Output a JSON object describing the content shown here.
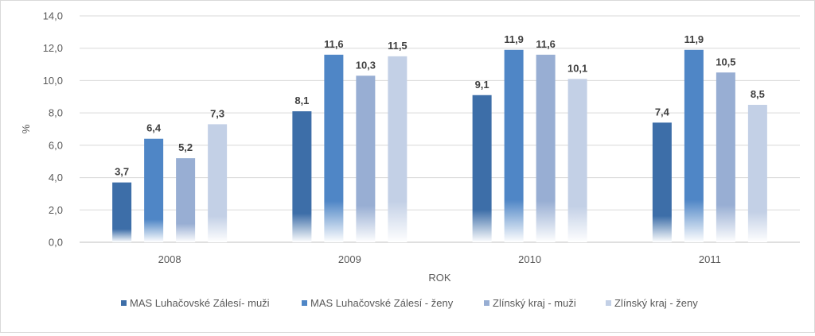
{
  "chart_data": {
    "type": "bar",
    "title": "",
    "xlabel": "ROK",
    "ylabel": "%",
    "ylim": [
      0,
      14
    ],
    "yticks": [
      "0,0",
      "2,0",
      "4,0",
      "6,0",
      "8,0",
      "10,0",
      "12,0",
      "14,0"
    ],
    "ytick_values": [
      0,
      2,
      4,
      6,
      8,
      10,
      12,
      14
    ],
    "grid": true,
    "legend": "bottom",
    "categories": [
      "2008",
      "2009",
      "2010",
      "2011"
    ],
    "series": [
      {
        "name": "MAS Luhačovské Zálesí- muži",
        "color": "#3d6ea8",
        "values": [
          3.7,
          8.1,
          9.1,
          7.4
        ],
        "labels": [
          "3,7",
          "8,1",
          "9,1",
          "7,4"
        ]
      },
      {
        "name": "MAS Luhačovské Zálesí - ženy",
        "color": "#4f86c6",
        "values": [
          6.4,
          11.6,
          11.9,
          11.9
        ],
        "labels": [
          "6,4",
          "11,6",
          "11,9",
          "11,9"
        ]
      },
      {
        "name": "Zlínský kraj - muži",
        "color": "#98aed3",
        "values": [
          5.2,
          10.3,
          11.6,
          10.5
        ],
        "labels": [
          "5,2",
          "10,3",
          "11,6",
          "10,5"
        ]
      },
      {
        "name": "Zlínský kraj - ženy",
        "color": "#c3d0e6",
        "values": [
          7.3,
          11.5,
          10.1,
          8.5
        ],
        "labels": [
          "7,3",
          "11,5",
          "10,1",
          "8,5"
        ]
      }
    ]
  }
}
